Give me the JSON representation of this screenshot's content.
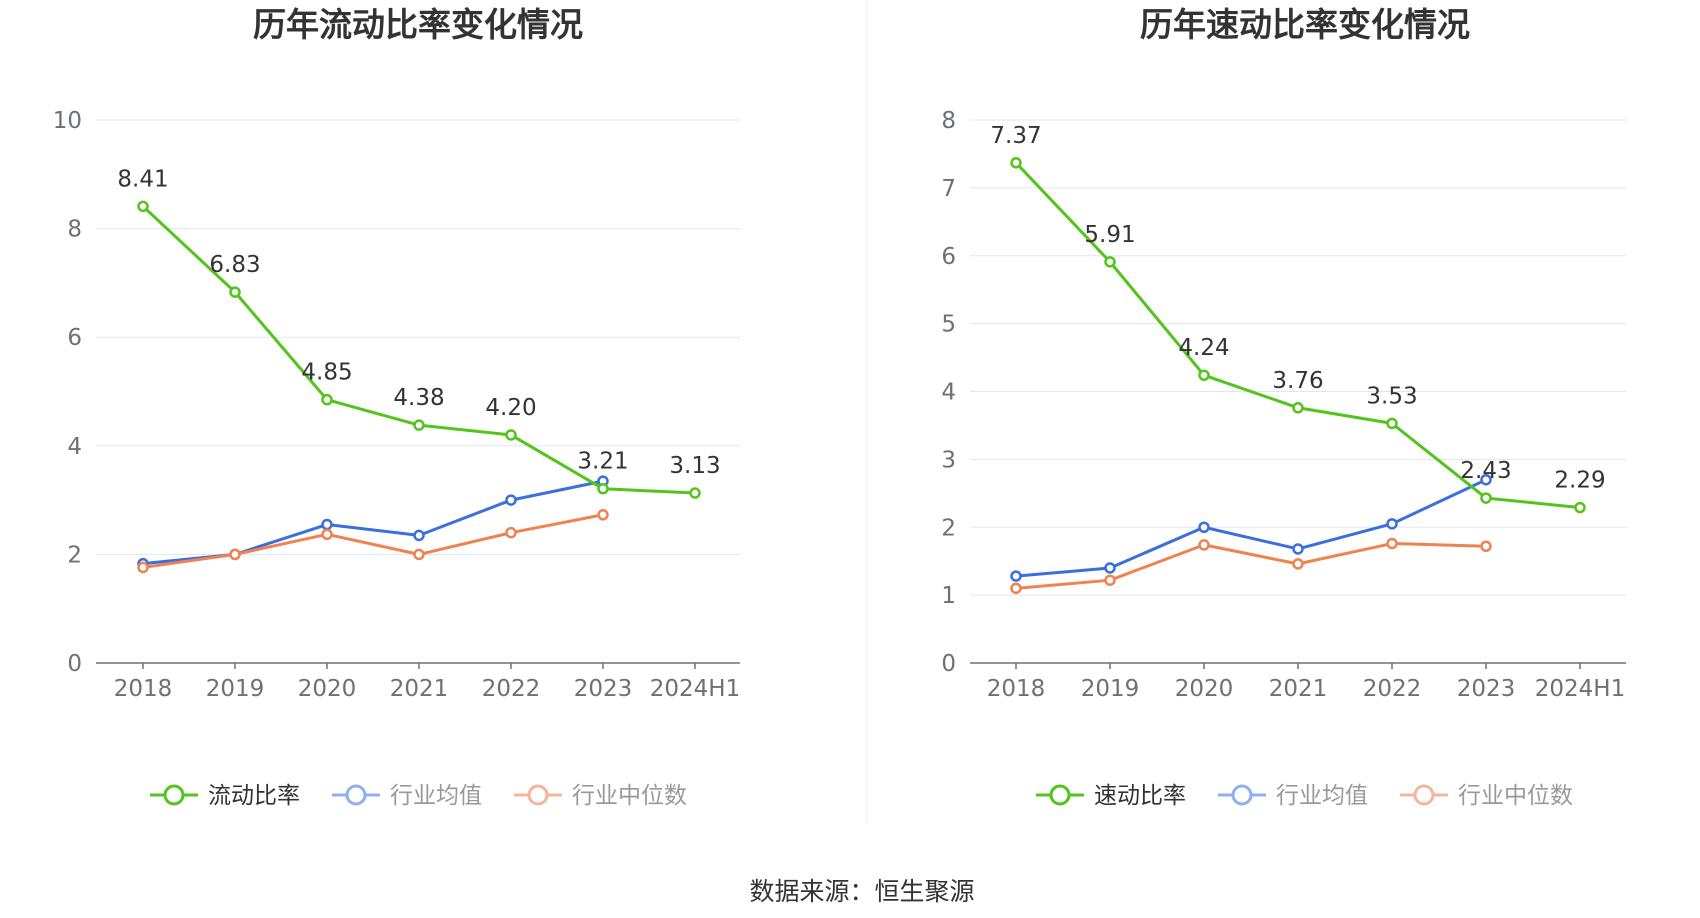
{
  "chart_data": [
    {
      "type": "line",
      "title": "历年流动比率变化情况",
      "categories": [
        "2018",
        "2019",
        "2020",
        "2021",
        "2022",
        "2023",
        "2024H1"
      ],
      "ylim": [
        0,
        10
      ],
      "yticks": [
        "0",
        "2",
        "4",
        "6",
        "8",
        "10"
      ],
      "grid": true,
      "legend_position": "bottom",
      "series": [
        {
          "name": "流动比率",
          "color": "#52c41a",
          "values": [
            8.41,
            6.83,
            4.85,
            4.38,
            4.2,
            3.21,
            3.13
          ],
          "labels": [
            "8.41",
            "6.83",
            "4.85",
            "4.38",
            "4.20",
            "3.21",
            "3.13"
          ]
        },
        {
          "name": "行业均值",
          "color": "#3a6fdc",
          "values": [
            1.83,
            2.0,
            2.55,
            2.35,
            3.0,
            3.35,
            null
          ]
        },
        {
          "name": "行业中位数",
          "color": "#f08250",
          "values": [
            1.76,
            2.0,
            2.37,
            2.0,
            2.4,
            2.73,
            null
          ]
        }
      ]
    },
    {
      "type": "line",
      "title": "历年速动比率变化情况",
      "categories": [
        "2018",
        "2019",
        "2020",
        "2021",
        "2022",
        "2023",
        "2024H1"
      ],
      "ylim": [
        0,
        8
      ],
      "yticks": [
        "0",
        "1",
        "2",
        "3",
        "4",
        "5",
        "6",
        "7",
        "8"
      ],
      "grid": true,
      "legend_position": "bottom",
      "series": [
        {
          "name": "速动比率",
          "color": "#52c41a",
          "values": [
            7.37,
            5.91,
            4.24,
            3.76,
            3.53,
            2.43,
            2.29
          ],
          "labels": [
            "7.37",
            "5.91",
            "4.24",
            "3.76",
            "3.53",
            "2.43",
            "2.29"
          ]
        },
        {
          "name": "行业均值",
          "color": "#3a6fdc",
          "values": [
            1.28,
            1.4,
            2.0,
            1.68,
            2.05,
            2.7,
            null
          ]
        },
        {
          "name": "行业中位数",
          "color": "#f08250",
          "values": [
            1.1,
            1.22,
            1.74,
            1.46,
            1.76,
            1.72,
            null
          ]
        }
      ]
    }
  ],
  "footer": {
    "source": "数据来源：恒生聚源"
  }
}
